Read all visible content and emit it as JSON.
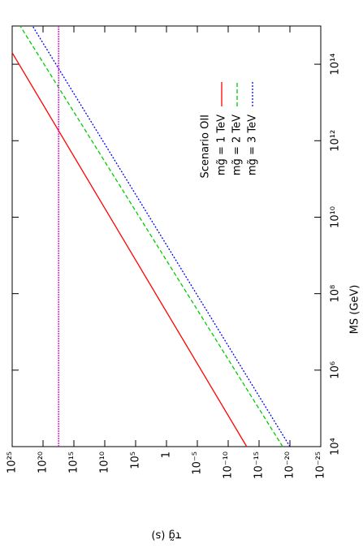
{
  "chart_data": {
    "type": "line",
    "log_x": true,
    "log_y": true,
    "x_label": "MS (GeV)",
    "y_label": "τg̃ (s)",
    "legend_title": "Scenario OII",
    "xlim": [
      10000,
      1000000000000000.0
    ],
    "xticks": [
      {
        "value": 10000,
        "label": "10⁴"
      },
      {
        "value": 1000000.0,
        "label": "10⁶"
      },
      {
        "value": 100000000.0,
        "label": "10⁸"
      },
      {
        "value": 10000000000.0,
        "label": "10¹⁰"
      },
      {
        "value": 1000000000000.0,
        "label": "10¹²"
      },
      {
        "value": 100000000000000.0,
        "label": "10¹⁴"
      }
    ],
    "ylim": [
      1e-25,
      1e+25
    ],
    "yticks": [
      {
        "value": 1e+25,
        "label": "10²⁵"
      },
      {
        "value": 1e+20,
        "label": "10²⁰"
      },
      {
        "value": 1000000000000000.0,
        "label": "10¹⁵"
      },
      {
        "value": 10000000000.0,
        "label": "10¹⁰"
      },
      {
        "value": 100000,
        "label": "10⁵"
      },
      1,
      {
        "value": 1e-05,
        "label": "10⁻⁵"
      },
      {
        "value": 1e-10,
        "label": "10⁻¹⁰"
      },
      {
        "value": 1e-15,
        "label": "10⁻¹⁵"
      },
      {
        "value": 1e-20,
        "label": "10⁻²⁰"
      },
      {
        "value": 1e-25,
        "label": "10⁻²⁵"
      }
    ],
    "series": [
      {
        "name": "mg̃ = 1 TeV",
        "color": "#ff0000",
        "dash": "none",
        "x": [
          10000,
          200000000000000.0
        ],
        "values": [
          1e-13,
          1e+25
        ]
      },
      {
        "name": "mg̃ = 2 TeV",
        "color": "#00cc00",
        "dash": "5,3",
        "x": [
          10000,
          1000000000000000.0
        ],
        "values": [
          1.5e-19,
          5e+23
        ]
      },
      {
        "name": "mg̃ = 3 TeV",
        "color": "#0000ff",
        "dash": "2,2",
        "x": [
          10000,
          1000000000000000.0
        ],
        "values": [
          1e-20,
          5e+21
        ]
      },
      {
        "color": "#dd00dd",
        "dash": "2,1",
        "x": [
          10000,
          1000000000000000.0
        ],
        "values": [
          3e+17,
          3e+17
        ]
      }
    ]
  }
}
